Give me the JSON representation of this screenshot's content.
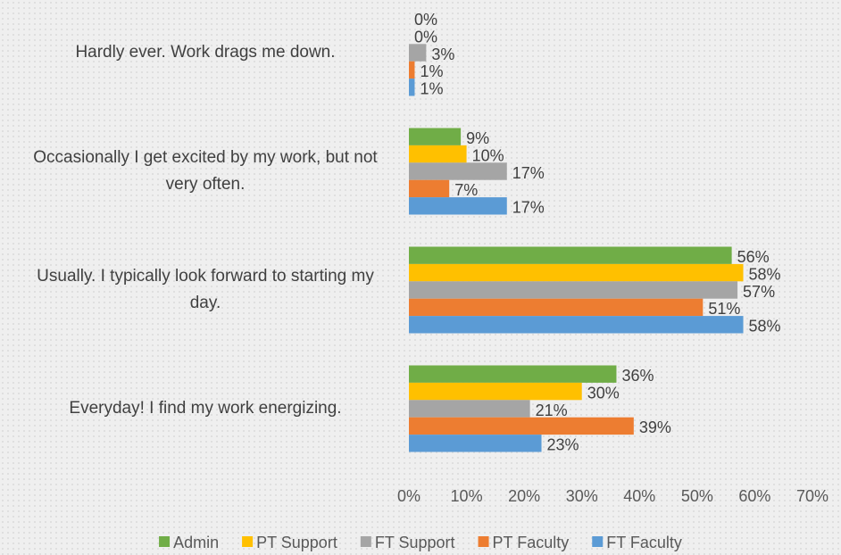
{
  "chart_data": {
    "type": "bar",
    "orientation": "horizontal",
    "categories": [
      "Hardly ever. Work drags me down.",
      "Occasionally I get excited by my work, but not very often.",
      "Usually. I typically look forward to starting my day.",
      "Everyday! I find my work energizing."
    ],
    "series": [
      {
        "name": "Admin",
        "color": "#70ad47",
        "values": [
          0,
          9,
          56,
          36
        ],
        "value_labels": [
          "0%",
          "9%",
          "56%",
          "36%"
        ]
      },
      {
        "name": "PT Support",
        "color": "#ffc000",
        "values": [
          0,
          10,
          58,
          30
        ],
        "value_labels": [
          "0%",
          "10%",
          "58%",
          "30%"
        ]
      },
      {
        "name": "FT Support",
        "color": "#a5a5a5",
        "values": [
          3,
          17,
          57,
          21
        ],
        "value_labels": [
          "3%",
          "17%",
          "57%",
          "21%"
        ]
      },
      {
        "name": "PT Faculty",
        "color": "#ed7d31",
        "values": [
          1,
          7,
          51,
          39
        ],
        "value_labels": [
          "1%",
          "7%",
          "51%",
          "39%"
        ]
      },
      {
        "name": "FT Faculty",
        "color": "#5b9bd5",
        "values": [
          1,
          17,
          58,
          23
        ],
        "value_labels": [
          "1%",
          "17%",
          "58%",
          "23%"
        ]
      }
    ],
    "xlim": [
      0,
      70
    ],
    "xticks": [
      {
        "value": 0,
        "label": "0%"
      },
      {
        "value": 10,
        "label": "10%"
      },
      {
        "value": 20,
        "label": "20%"
      },
      {
        "value": 30,
        "label": "30%"
      },
      {
        "value": 40,
        "label": "40%"
      },
      {
        "value": 50,
        "label": "50%"
      },
      {
        "value": 60,
        "label": "60%"
      },
      {
        "value": 70,
        "label": "70%"
      }
    ],
    "grid": false,
    "legend": "bottom"
  }
}
